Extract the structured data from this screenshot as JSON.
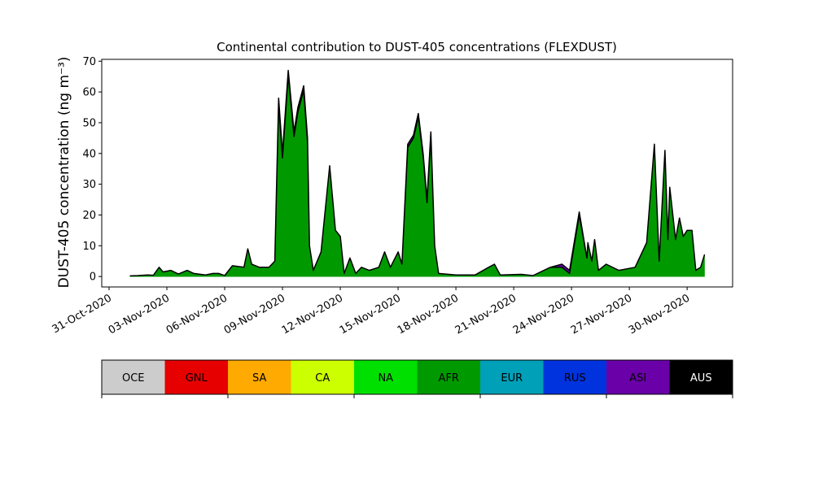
{
  "chart_data": {
    "type": "stacked_area",
    "title": "Continental contribution to DUST-405 concentrations (FLEXDUST)",
    "ylabel": "DUST-405 concentration (ng m⁻³)",
    "x": [
      1.1,
      1.5,
      2.0,
      2.3,
      2.6,
      2.8,
      3.2,
      3.6,
      4.05,
      4.4,
      5.0,
      5.4,
      5.7,
      6.0,
      6.4,
      7.0,
      7.2,
      7.4,
      7.8,
      8.3,
      8.6,
      8.8,
      9.0,
      9.3,
      9.6,
      9.8,
      10.1,
      10.3,
      10.4,
      10.6,
      11.0,
      11.45,
      11.75,
      12.0,
      12.2,
      12.5,
      12.8,
      13.1,
      13.5,
      14.0,
      14.3,
      14.6,
      15.0,
      15.2,
      15.5,
      15.8,
      16.05,
      16.3,
      16.5,
      16.7,
      16.9,
      17.1,
      18.0,
      19.0,
      19.7,
      20.0,
      20.3,
      21.4,
      22.0,
      22.9,
      23.5,
      23.9,
      24.4,
      24.8,
      24.85,
      25.05,
      25.2,
      25.4,
      25.8,
      26.45,
      27.3,
      27.9,
      28.3,
      28.55,
      28.85,
      29.0,
      29.1,
      29.4,
      29.6,
      29.8,
      30.0,
      30.25,
      30.45,
      30.7,
      30.9
    ],
    "series": [
      {
        "name": "AFR",
        "color": "#009a00",
        "values": [
          0.2,
          0.3,
          0.5,
          0.4,
          3,
          1.5,
          2,
          0.8,
          2,
          1,
          0.5,
          1,
          1,
          0.3,
          3.5,
          3,
          9,
          4,
          3,
          3,
          5,
          56.5,
          38.5,
          65.5,
          45.5,
          53.5,
          60.5,
          43.5,
          10,
          2,
          8,
          36,
          15,
          13,
          1,
          6,
          1,
          3,
          2,
          3,
          8,
          3,
          8,
          4,
          42,
          45,
          52,
          39,
          24,
          46,
          10,
          1,
          0.5,
          0.5,
          3,
          4,
          0.5,
          0.7,
          0.3,
          3,
          3,
          1,
          20,
          6,
          11,
          5,
          12,
          2,
          4,
          2,
          3,
          11,
          43,
          5,
          41,
          12,
          29,
          12,
          19,
          13,
          15,
          15,
          2,
          3,
          7
        ]
      },
      {
        "name": "ASI",
        "color": "#6a00a8",
        "values": [
          0,
          0,
          0,
          0,
          0,
          0,
          0,
          0,
          0,
          0,
          0,
          0,
          0,
          0,
          0,
          0,
          0,
          0,
          0,
          0,
          0,
          1.5,
          1.5,
          1.5,
          1.5,
          1.5,
          1.5,
          1.5,
          0,
          0,
          0,
          0,
          0,
          0,
          0,
          0,
          0,
          0,
          0,
          0,
          0,
          0,
          0,
          0,
          1,
          1,
          1,
          1,
          1,
          1,
          0,
          0,
          0,
          0,
          0,
          0,
          0,
          0,
          0,
          0,
          1,
          1,
          1,
          0,
          0,
          0,
          0,
          0,
          0,
          0,
          0,
          0,
          0,
          0,
          0,
          0,
          0,
          0,
          0,
          0,
          0,
          0,
          0,
          0,
          0
        ]
      }
    ],
    "xlim": [
      -0.38,
      32.36
    ],
    "xticks": [
      {
        "value": 0,
        "label": "31-Oct-2020"
      },
      {
        "value": 3,
        "label": "03-Nov-2020"
      },
      {
        "value": 6,
        "label": "06-Nov-2020"
      },
      {
        "value": 9,
        "label": "09-Nov-2020"
      },
      {
        "value": 12,
        "label": "12-Nov-2020"
      },
      {
        "value": 15,
        "label": "15-Nov-2020"
      },
      {
        "value": 18,
        "label": "18-Nov-2020"
      },
      {
        "value": 21,
        "label": "21-Nov-2020"
      },
      {
        "value": 24,
        "label": "24-Nov-2020"
      },
      {
        "value": 27,
        "label": "27-Nov-2020"
      },
      {
        "value": 30,
        "label": "30-Nov-2020"
      }
    ],
    "ylim": [
      -3.4,
      70.6
    ],
    "yticks": [
      0,
      10,
      20,
      30,
      40,
      50,
      60,
      70
    ],
    "outline_color": "#000000",
    "colorbar": {
      "labels": [
        "OCE",
        "GNL",
        "SA",
        "CA",
        "NA",
        "AFR",
        "EUR",
        "RUS",
        "ASI",
        "AUS"
      ],
      "colors": [
        "#cccccc",
        "#e60000",
        "#ffaa00",
        "#ccff00",
        "#00e000",
        "#009a00",
        "#00a0b8",
        "#0033dd",
        "#6a00a8",
        "#000000"
      ],
      "label_colors": [
        "#000000",
        "#000000",
        "#000000",
        "#000000",
        "#000000",
        "#000000",
        "#000000",
        "#000000",
        "#000000",
        "#ffffff"
      ]
    }
  }
}
